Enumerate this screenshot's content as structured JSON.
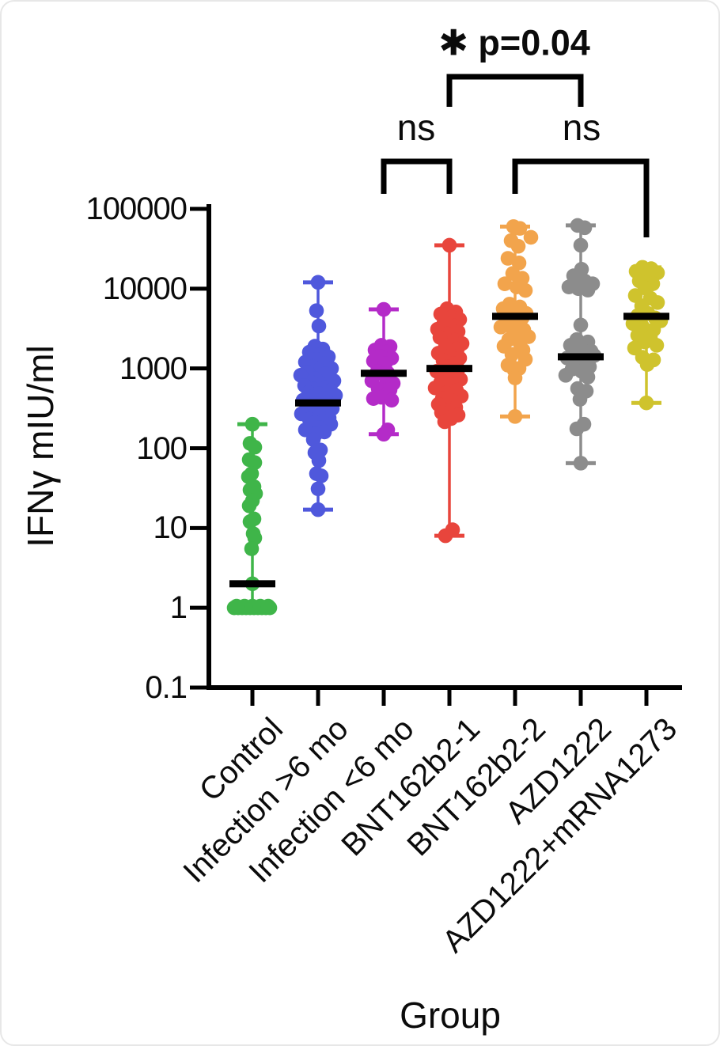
{
  "figure": {
    "y_axis_title": "IFNγ mIU/ml",
    "x_axis_title": "Group"
  },
  "chart_data": {
    "type": "scatter",
    "subtype": "column-scatter-with-median-log-scale",
    "ylabel": "IFNγ mIU/ml",
    "xlabel": "Group",
    "yscale": "log",
    "ylim": [
      0.1,
      100000
    ],
    "grid": false,
    "ytick_labels": [
      "100000",
      "10000",
      "1000",
      "100",
      "10",
      "1",
      "0.1"
    ],
    "ytick_values": [
      100000,
      10000,
      1000,
      100,
      10,
      1,
      0.1
    ],
    "categories": [
      "Control",
      "Infection >6 mo",
      "Infection <6 mo",
      "BNT162b2-1",
      "BNT162b2-2",
      "AZD1222",
      "AZD1222+mRNA1273"
    ],
    "significance": [
      {
        "label": "✱ p=0.04",
        "from": 3,
        "to": 5,
        "bar_y": 95,
        "leg_from": 38,
        "leg_to": 38
      },
      {
        "label": "ns",
        "from": 2,
        "to": 3,
        "bar_y": 202,
        "leg_from": 41,
        "leg_to": 41
      },
      {
        "label": "ns",
        "from": 4,
        "to": 6,
        "bar_y": 202,
        "leg_from": 41,
        "leg_to": 96
      }
    ],
    "groups": [
      {
        "label": "Control",
        "color": "#3FB549",
        "median": 2,
        "whisker_min": 1,
        "whisker_max": 200,
        "points": [
          [
            200,
            0
          ],
          [
            115,
            -3
          ],
          [
            103,
            3
          ],
          [
            72,
            -4
          ],
          [
            66,
            3
          ],
          [
            48,
            -1
          ],
          [
            44,
            -5
          ],
          [
            33,
            2
          ],
          [
            30,
            -3
          ],
          [
            27,
            4
          ],
          [
            22,
            0
          ],
          [
            19,
            -4
          ],
          [
            13,
            2
          ],
          [
            12,
            -3
          ],
          [
            8.5,
            1
          ],
          [
            7.5,
            3
          ],
          [
            5.5,
            -1
          ],
          [
            2,
            0
          ],
          [
            1,
            -23
          ],
          [
            1,
            -18
          ],
          [
            1,
            -13
          ],
          [
            1,
            -8
          ],
          [
            1,
            -3
          ],
          [
            1,
            2
          ],
          [
            1,
            7
          ],
          [
            1,
            12
          ],
          [
            1,
            17
          ],
          [
            1,
            22
          ],
          [
            1.05,
            -20
          ],
          [
            1.05,
            -10
          ],
          [
            1.05,
            0
          ],
          [
            1.05,
            10
          ],
          [
            1.05,
            20
          ]
        ]
      },
      {
        "label": "Infection >6 mo",
        "color": "#4F58DC",
        "median": 370,
        "whisker_min": 17,
        "whisker_max": 12000,
        "points": [
          [
            12000,
            0
          ],
          [
            5300,
            -2
          ],
          [
            3400,
            1
          ],
          [
            1900,
            -4
          ],
          [
            1750,
            6
          ],
          [
            1600,
            -11
          ],
          [
            1500,
            4
          ],
          [
            1400,
            13
          ],
          [
            1300,
            -2
          ],
          [
            1200,
            -16
          ],
          [
            1150,
            8
          ],
          [
            1050,
            -7
          ],
          [
            1000,
            17
          ],
          [
            950,
            1
          ],
          [
            900,
            -13
          ],
          [
            860,
            9
          ],
          [
            820,
            -22
          ],
          [
            780,
            13
          ],
          [
            740,
            -3
          ],
          [
            700,
            20
          ],
          [
            670,
            -9
          ],
          [
            640,
            4
          ],
          [
            610,
            -17
          ],
          [
            580,
            10
          ],
          [
            550,
            -5
          ],
          [
            530,
            16
          ],
          [
            500,
            -12
          ],
          [
            480,
            2
          ],
          [
            460,
            22
          ],
          [
            440,
            -8
          ],
          [
            420,
            7
          ],
          [
            400,
            -19
          ],
          [
            380,
            12
          ],
          [
            360,
            -2
          ],
          [
            345,
            -14
          ],
          [
            330,
            5
          ],
          [
            315,
            18
          ],
          [
            300,
            -7
          ],
          [
            285,
            10
          ],
          [
            270,
            -21
          ],
          [
            255,
            1
          ],
          [
            240,
            14
          ],
          [
            230,
            -11
          ],
          [
            220,
            6
          ],
          [
            210,
            -4
          ],
          [
            200,
            16
          ],
          [
            190,
            -9
          ],
          [
            180,
            2
          ],
          [
            170,
            -16
          ],
          [
            160,
            8
          ],
          [
            150,
            -3
          ],
          [
            128,
            -6
          ],
          [
            95,
            3
          ],
          [
            88,
            -4
          ],
          [
            70,
            1
          ],
          [
            48,
            -2
          ],
          [
            45,
            4
          ],
          [
            31,
            0
          ],
          [
            17,
            0
          ]
        ]
      },
      {
        "label": "Infection <6 mo",
        "color": "#B42BC8",
        "median": 870,
        "whisker_min": 150,
        "whisker_max": 5500,
        "points": [
          [
            5500,
            0
          ],
          [
            1950,
            -3
          ],
          [
            1880,
            8
          ],
          [
            1700,
            -11
          ],
          [
            1600,
            3
          ],
          [
            1420,
            -5
          ],
          [
            1350,
            10
          ],
          [
            1240,
            -13
          ],
          [
            1150,
            2
          ],
          [
            920,
            -8
          ],
          [
            880,
            5
          ],
          [
            850,
            -2
          ],
          [
            700,
            -15
          ],
          [
            680,
            4
          ],
          [
            650,
            12
          ],
          [
            560,
            -7
          ],
          [
            540,
            8
          ],
          [
            435,
            -3
          ],
          [
            420,
            -13
          ],
          [
            400,
            10
          ],
          [
            170,
            5
          ],
          [
            150,
            0
          ]
        ]
      },
      {
        "label": "BNT162b2-1",
        "color": "#E8453C",
        "median": 1000,
        "whisker_min": 8,
        "whisker_max": 35000,
        "points": [
          [
            35000,
            0
          ],
          [
            5600,
            -3
          ],
          [
            5100,
            8
          ],
          [
            4800,
            -11
          ],
          [
            4400,
            3
          ],
          [
            4100,
            13
          ],
          [
            3700,
            -7
          ],
          [
            3400,
            6
          ],
          [
            3100,
            -15
          ],
          [
            2900,
            11
          ],
          [
            2700,
            -2
          ],
          [
            2450,
            -12
          ],
          [
            2250,
            7
          ],
          [
            2050,
            16
          ],
          [
            1900,
            -5
          ],
          [
            1750,
            10
          ],
          [
            1550,
            -14
          ],
          [
            1450,
            2
          ],
          [
            1350,
            13
          ],
          [
            1250,
            -8
          ],
          [
            1150,
            5
          ],
          [
            1050,
            -2
          ],
          [
            980,
            11
          ],
          [
            920,
            -16
          ],
          [
            860,
            6
          ],
          [
            790,
            -6
          ],
          [
            730,
            14
          ],
          [
            670,
            -11
          ],
          [
            620,
            3
          ],
          [
            570,
            -18
          ],
          [
            530,
            9
          ],
          [
            490,
            -4
          ],
          [
            450,
            15
          ],
          [
            420,
            -9
          ],
          [
            390,
            5
          ],
          [
            355,
            -14
          ],
          [
            325,
            8
          ],
          [
            300,
            -1
          ],
          [
            280,
            -10
          ],
          [
            260,
            11
          ],
          [
            235,
            2
          ],
          [
            215,
            -6
          ],
          [
            9.5,
            4
          ],
          [
            8,
            -5
          ]
        ]
      },
      {
        "label": "BNT162b2-2",
        "color": "#F2A44C",
        "median": 4500,
        "whisker_min": 250,
        "whisker_max": 60000,
        "points": [
          [
            60000,
            -2
          ],
          [
            57000,
            6
          ],
          [
            44000,
            20
          ],
          [
            40000,
            -5
          ],
          [
            34000,
            4
          ],
          [
            24000,
            -9
          ],
          [
            21000,
            5
          ],
          [
            15500,
            -3
          ],
          [
            13500,
            9
          ],
          [
            11500,
            -13
          ],
          [
            10500,
            2
          ],
          [
            9500,
            13
          ],
          [
            6400,
            -7
          ],
          [
            5900,
            6
          ],
          [
            5600,
            -15
          ],
          [
            5100,
            0
          ],
          [
            4900,
            14
          ],
          [
            4600,
            -4
          ],
          [
            4300,
            9
          ],
          [
            3900,
            -11
          ],
          [
            3600,
            3
          ],
          [
            3300,
            -18
          ],
          [
            3050,
            11
          ],
          [
            2800,
            -2
          ],
          [
            2500,
            17
          ],
          [
            2300,
            -8
          ],
          [
            2100,
            6
          ],
          [
            1900,
            -14
          ],
          [
            1700,
            10
          ],
          [
            1500,
            -4
          ],
          [
            1300,
            13
          ],
          [
            1100,
            -9
          ],
          [
            1000,
            5
          ],
          [
            950,
            -1
          ],
          [
            760,
            0
          ],
          [
            250,
            0
          ]
        ]
      },
      {
        "label": "AZD1222",
        "color": "#8C8C8C",
        "median": 1400,
        "whisker_min": 65,
        "whisker_max": 62000,
        "points": [
          [
            62000,
            -4
          ],
          [
            58000,
            5
          ],
          [
            35000,
            0
          ],
          [
            17500,
            1
          ],
          [
            14500,
            -9
          ],
          [
            12500,
            5
          ],
          [
            11500,
            15
          ],
          [
            10500,
            -15
          ],
          [
            10000,
            -3
          ],
          [
            9600,
            9
          ],
          [
            3500,
            0
          ],
          [
            2300,
            -5
          ],
          [
            2150,
            9
          ],
          [
            1950,
            -13
          ],
          [
            1800,
            3
          ],
          [
            1650,
            13
          ],
          [
            1500,
            -8
          ],
          [
            1450,
            17
          ],
          [
            1350,
            -17
          ],
          [
            1250,
            6
          ],
          [
            1150,
            -3
          ],
          [
            1050,
            11
          ],
          [
            980,
            -11
          ],
          [
            920,
            1
          ],
          [
            820,
            -19
          ],
          [
            780,
            9
          ],
          [
            560,
            -4
          ],
          [
            520,
            7
          ],
          [
            410,
            -1
          ],
          [
            200,
            4
          ],
          [
            175,
            -5
          ],
          [
            65,
            0
          ]
        ]
      },
      {
        "label": "AZD1222+mRNA1273",
        "color": "#CFC32D",
        "median": 4500,
        "whisker_min": 370,
        "whisker_max": 18500,
        "points": [
          [
            18500,
            -5
          ],
          [
            17800,
            6
          ],
          [
            16500,
            -13
          ],
          [
            15800,
            14
          ],
          [
            15000,
            2
          ],
          [
            12500,
            -9
          ],
          [
            11500,
            8
          ],
          [
            10200,
            -2
          ],
          [
            8200,
            -14
          ],
          [
            7600,
            5
          ],
          [
            6700,
            14
          ],
          [
            6100,
            -6
          ],
          [
            4900,
            2
          ],
          [
            4600,
            -11
          ],
          [
            4300,
            11
          ],
          [
            3950,
            18
          ],
          [
            3650,
            -17
          ],
          [
            3350,
            -5
          ],
          [
            3050,
            9
          ],
          [
            2600,
            -11
          ],
          [
            2450,
            5
          ],
          [
            2150,
            -2
          ],
          [
            1950,
            13
          ],
          [
            1800,
            -15
          ],
          [
            1380,
            -5
          ],
          [
            1280,
            9
          ],
          [
            1120,
            1
          ],
          [
            370,
            0
          ]
        ]
      }
    ]
  }
}
